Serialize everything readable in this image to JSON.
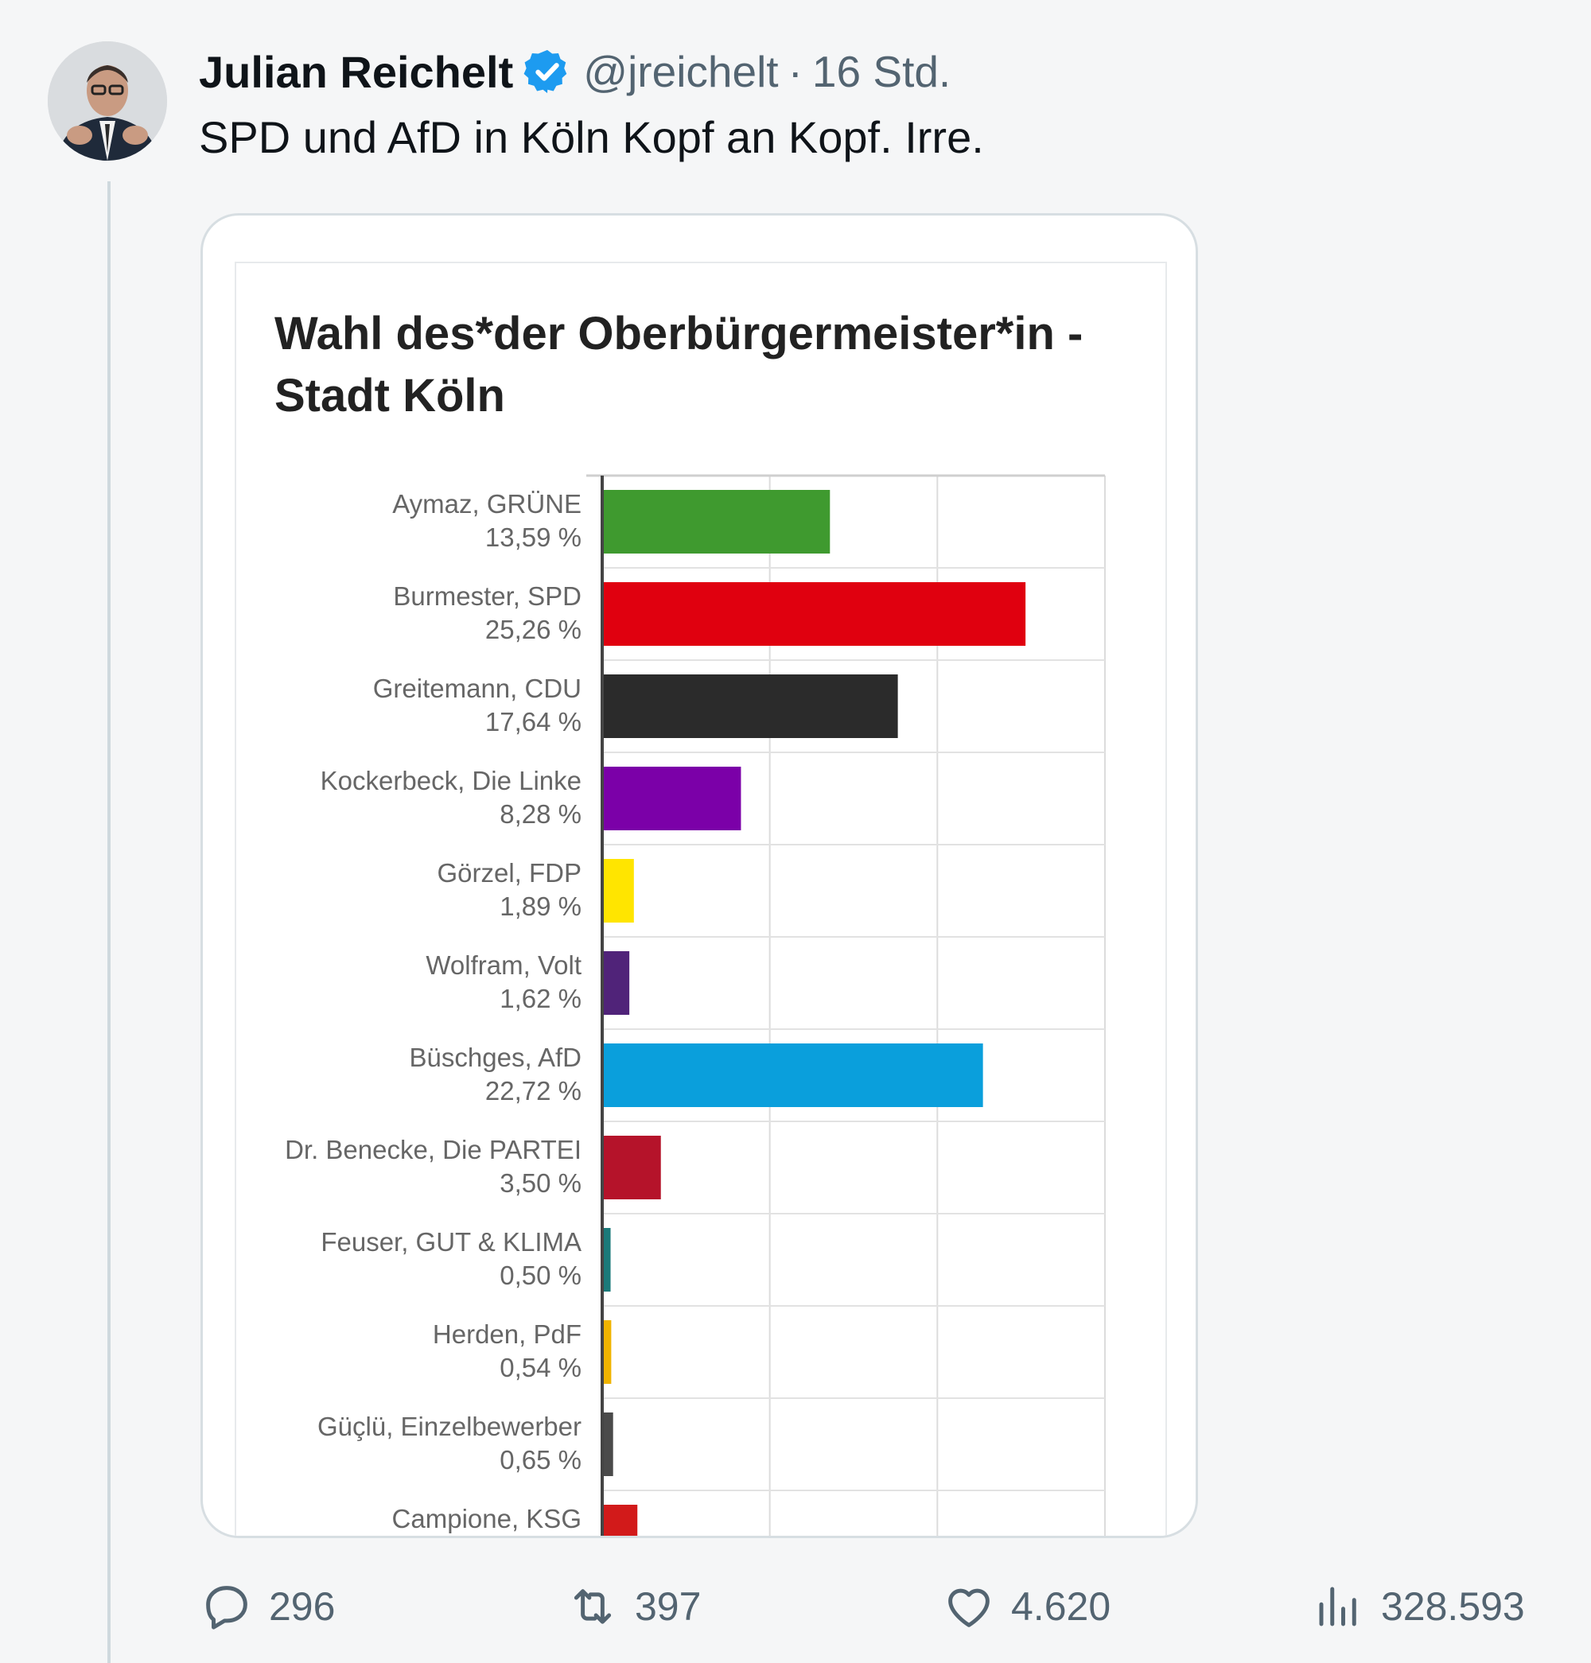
{
  "tweet": {
    "author_name": "Julian Reichelt",
    "handle": "@jreichelt",
    "separator": "·",
    "time": "16 Std.",
    "text": "SPD und AfD in Köln Kopf an Kopf. Irre."
  },
  "chart_data": {
    "type": "bar",
    "orientation": "horizontal",
    "title": "Wahl des*der Oberbürgermeister*in - Stadt Köln",
    "title_lines": [
      "Wahl des*der Oberbürgermeister*in -",
      "Stadt Köln"
    ],
    "xlim": [
      0,
      30
    ],
    "grid": true,
    "categories": [
      {
        "name": "Aymaz, GRÜNE",
        "label": "13,59 %",
        "value": 13.59,
        "color": "#3f9a2f"
      },
      {
        "name": "Burmester, SPD",
        "label": "25,26 %",
        "value": 25.26,
        "color": "#e0000f"
      },
      {
        "name": "Greitemann, CDU",
        "label": "17,64 %",
        "value": 17.64,
        "color": "#2b2b2b"
      },
      {
        "name": "Kockerbeck, Die Linke",
        "label": "8,28 %",
        "value": 8.28,
        "color": "#7b00a8"
      },
      {
        "name": "Görzel, FDP",
        "label": "1,89 %",
        "value": 1.89,
        "color": "#ffe500"
      },
      {
        "name": "Wolfram, Volt",
        "label": "1,62 %",
        "value": 1.62,
        "color": "#502379"
      },
      {
        "name": "Büschges, AfD",
        "label": "22,72 %",
        "value": 22.72,
        "color": "#0a9fdc"
      },
      {
        "name": "Dr. Benecke, Die PARTEI",
        "label": "3,50 %",
        "value": 3.5,
        "color": "#b5132a"
      },
      {
        "name": "Feuser, GUT & KLIMA",
        "label": "0,50 %",
        "value": 0.5,
        "color": "#1b7a7a"
      },
      {
        "name": "Herden, PdF",
        "label": "0,54 %",
        "value": 0.54,
        "color": "#f0b400"
      },
      {
        "name": "Güçlü, Einzelbewerber",
        "label": "0,65 %",
        "value": 0.65,
        "color": "#4a4a4a"
      },
      {
        "name": "Campione, KSG",
        "label": "",
        "value": 2.1,
        "color": "#d21a1a"
      }
    ]
  },
  "actions": {
    "replies": "296",
    "retweets": "397",
    "likes": "4.620",
    "views": "328.593"
  },
  "colors": {
    "verified": "#1d9bf0",
    "muted_text": "#536471"
  }
}
